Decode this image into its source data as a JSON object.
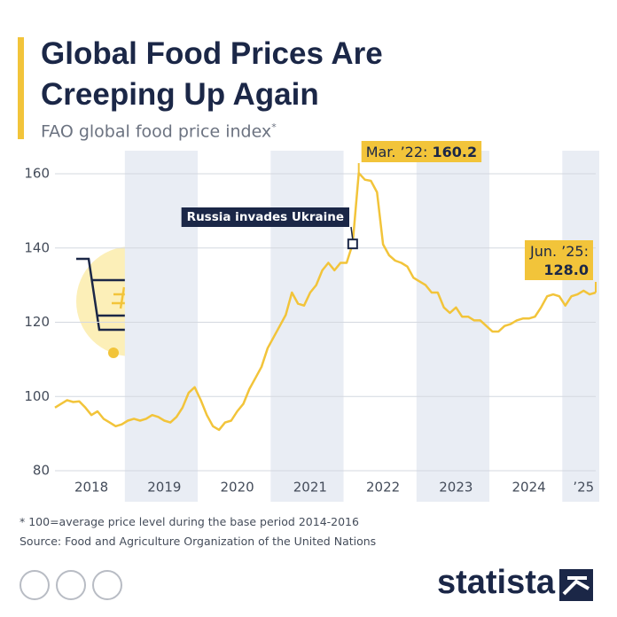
{
  "chart_data": {
    "type": "line",
    "title": "Global Food Prices Are Creeping Up Again",
    "subtitle": "FAO global food price index",
    "subtitle_mark": "*",
    "footnote": "* 100=average price level during the base period 2014-2016",
    "source": "Source: Food and Agriculture Organization of the United Nations",
    "brand": "statista",
    "categories": [
      null,
      null,
      null,
      null,
      null,
      null,
      "2018",
      null,
      null,
      null,
      null,
      null,
      null,
      null,
      null,
      null,
      null,
      null,
      "2019",
      null,
      null,
      null,
      null,
      null,
      null,
      null,
      null,
      null,
      null,
      null,
      "2020",
      null,
      null,
      null,
      null,
      null,
      null,
      null,
      null,
      null,
      null,
      null,
      "2021",
      null,
      null,
      null,
      null,
      null,
      null,
      null,
      null,
      null,
      null,
      null,
      "2022",
      null,
      null,
      null,
      null,
      null,
      null,
      null,
      null,
      null,
      null,
      null,
      "2023",
      null,
      null,
      null,
      null,
      null,
      null,
      null,
      null,
      null,
      null,
      null,
      "2024",
      null,
      null,
      null,
      null,
      null,
      null,
      null,
      null,
      "’25",
      null,
      null
    ],
    "values": [
      97,
      98,
      99,
      98.5,
      98.7,
      97,
      95,
      96,
      94,
      93,
      92,
      92.5,
      93.5,
      94,
      93.5,
      94,
      95,
      94.5,
      93.5,
      93,
      94.5,
      97,
      101,
      102.5,
      99,
      95,
      92,
      91,
      93,
      93.5,
      96,
      98,
      102,
      105,
      108,
      113,
      116,
      119,
      122,
      128,
      125,
      124.5,
      128,
      130,
      134,
      136,
      134,
      136,
      136,
      141.1,
      160.2,
      158.4,
      158.1,
      155,
      141,
      138,
      136.6,
      136,
      135,
      132,
      131,
      130,
      128,
      128,
      124,
      122.5,
      124,
      121.5,
      121.5,
      120.5,
      120.5,
      119,
      117.5,
      117.5,
      119,
      119.5,
      120.5,
      121,
      121,
      121.5,
      124,
      127,
      127.5,
      127,
      124.5,
      127,
      127.5,
      128.5,
      127.5,
      128
    ],
    "value_labels": {
      "50": "160.2",
      "89": "128.0"
    },
    "annotations": [
      {
        "text": "Mar. ’22:",
        "index": 50
      },
      {
        "text": "Jun. ’25:",
        "index": 89
      },
      {
        "text": "Russia invades Ukraine",
        "index": 49
      }
    ],
    "color": "#f2c43a",
    "ylim": [
      80,
      160
    ],
    "yticks": [
      80,
      100,
      120,
      140,
      160
    ]
  }
}
